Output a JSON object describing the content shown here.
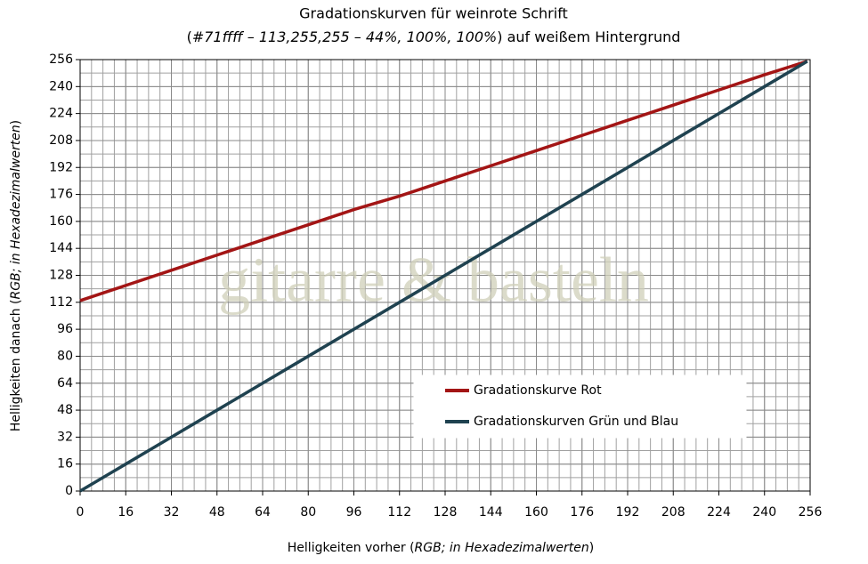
{
  "chart_data": {
    "type": "line",
    "title": "Gradationskurven für weinrote Schrift",
    "subtitle": [
      "(",
      "#71ffff – 113,255,255 – 44%, 100%, 100%",
      ") auf weißem Hintergrund"
    ],
    "x_label": [
      "Helligkeiten vorher (",
      "RGB; in Hexadezimalwerten",
      ")"
    ],
    "y_label": [
      "Helligkeiten danach (",
      "RGB; in Hexadezimalwerten",
      ")"
    ],
    "watermark": "gitarre & basteln",
    "x": [
      0,
      16,
      32,
      48,
      64,
      80,
      96,
      112,
      128,
      144,
      160,
      176,
      192,
      208,
      224,
      240,
      255
    ],
    "series": [
      {
        "name": "Gradationskurve Rot",
        "color": "#a31515",
        "values": [
          113,
          122,
          131,
          140,
          149,
          158,
          167,
          175,
          184,
          193,
          202,
          211,
          220,
          229,
          238,
          247,
          255
        ]
      },
      {
        "name": "Gradationskurven Grün und Blau",
        "color": "#1f4250",
        "values": [
          0,
          16,
          32,
          48,
          64,
          80,
          96,
          112,
          128,
          144,
          160,
          176,
          192,
          208,
          224,
          240,
          255
        ]
      }
    ],
    "xlim": [
      0,
      256
    ],
    "ylim": [
      0,
      256
    ],
    "xticks": [
      0,
      16,
      32,
      48,
      64,
      80,
      96,
      112,
      128,
      144,
      160,
      176,
      192,
      208,
      224,
      240,
      256
    ],
    "yticks": [
      0,
      16,
      32,
      48,
      64,
      80,
      96,
      112,
      128,
      144,
      160,
      176,
      192,
      208,
      224,
      240,
      256
    ],
    "grid": true,
    "grid_step": [
      4,
      8
    ]
  }
}
